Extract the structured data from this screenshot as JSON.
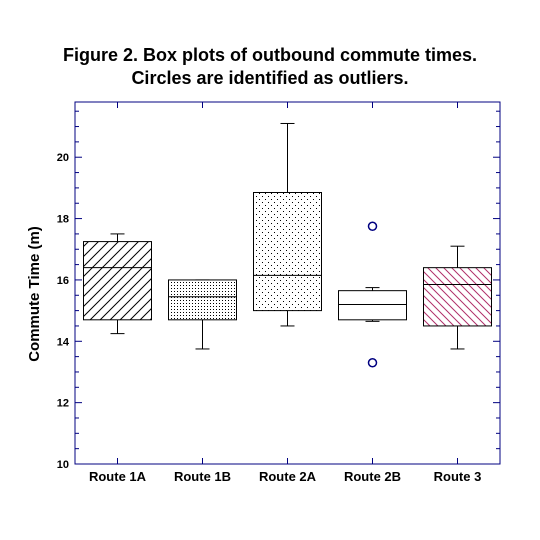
{
  "chart_data": {
    "type": "box",
    "title_lines": [
      "Figure 2. Box plots of outbound commute times.",
      "Circles are identified as outliers."
    ],
    "xlabel": "",
    "ylabel": "Commute Time (m)",
    "ylim": [
      10,
      21.8
    ],
    "yticks": [
      "10",
      "12",
      "14",
      "16",
      "18",
      "20"
    ],
    "grid": false,
    "legend": "none",
    "colors": {
      "frame": "#000080",
      "box_stroke": "#000000",
      "outlier": "#000080",
      "route3_hatch": "#b0306a"
    },
    "series": [
      {
        "category": "Route 1A",
        "whisker_low": 14.25,
        "q1": 14.7,
        "median": 16.4,
        "q3": 17.25,
        "whisker_high": 17.5,
        "pattern": "hatch-right",
        "outliers": []
      },
      {
        "category": "Route 1B",
        "whisker_low": 13.75,
        "q1": 14.7,
        "median": 15.45,
        "q3": 16.0,
        "whisker_high": 16.0,
        "pattern": "dots-dense",
        "outliers": []
      },
      {
        "category": "Route 2A",
        "whisker_low": 14.5,
        "q1": 15.0,
        "median": 16.15,
        "q3": 18.85,
        "whisker_high": 21.1,
        "pattern": "dots-sparse",
        "outliers": []
      },
      {
        "category": "Route 2B",
        "whisker_low": 14.65,
        "q1": 14.7,
        "median": 15.2,
        "q3": 15.65,
        "whisker_high": 15.75,
        "pattern": "none",
        "outliers": [
          17.75,
          13.3
        ]
      },
      {
        "category": "Route 3",
        "whisker_low": 13.75,
        "q1": 14.5,
        "median": 15.85,
        "q3": 16.4,
        "whisker_high": 17.1,
        "pattern": "hatch-left",
        "outliers": []
      }
    ]
  }
}
